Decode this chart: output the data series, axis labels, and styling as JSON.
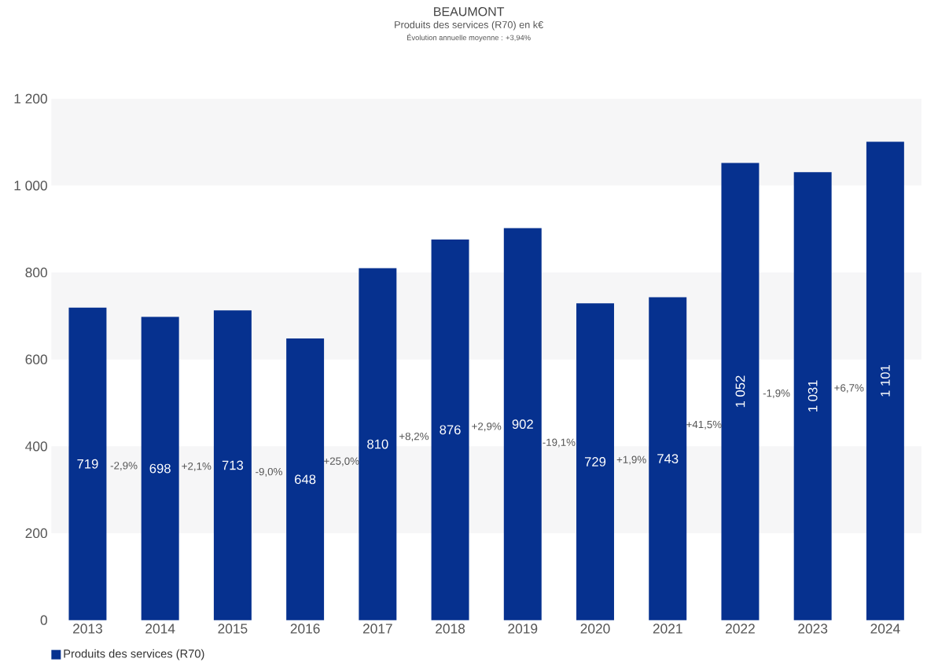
{
  "chart_data": {
    "type": "bar",
    "title": "BEAUMONT",
    "subtitle": "Produits des services (R70) en k€",
    "annotations": [
      "Évolution annuelle moyenne : +3,94%",
      "-2,9%",
      "+2,1%",
      "-9,0%",
      "+25,0%",
      "+8,2%",
      "+2,9%",
      "-19,1%",
      "+1,9%",
      "+41,5%",
      "-1,9%",
      "+6,7%"
    ],
    "categories": [
      "2013",
      "2014",
      "2015",
      "2016",
      "2017",
      "2018",
      "2019",
      "2020",
      "2021",
      "2022",
      "2023",
      "2024"
    ],
    "series": [
      {
        "name": "Produits des services (R70)",
        "color": "#06318f",
        "values": [
          719,
          698,
          713,
          648,
          810,
          876,
          902,
          729,
          743,
          1052,
          1031,
          1101
        ]
      }
    ],
    "ylim": [
      0,
      1200
    ],
    "yticks": [
      0,
      200,
      400,
      600,
      800,
      {
        "value": 1000,
        "label": "1 000"
      },
      {
        "value": 1200,
        "label": "1 200"
      }
    ],
    "legend": "bottom left",
    "data_labels": true
  }
}
